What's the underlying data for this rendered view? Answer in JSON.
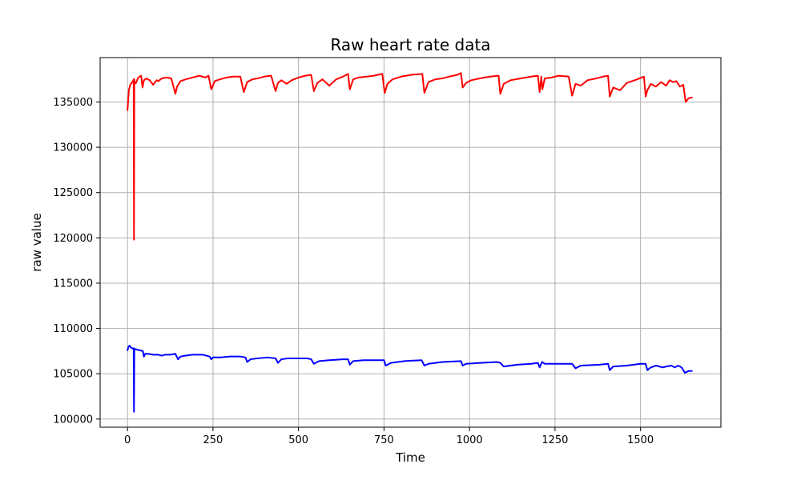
{
  "chart_data": {
    "type": "line",
    "title": "Raw heart rate data",
    "xlabel": "Time",
    "ylabel": "raw value",
    "xlim": [
      -80,
      1735
    ],
    "ylim": [
      99100,
      139900
    ],
    "xticks": [
      0,
      250,
      500,
      750,
      1000,
      1250,
      1500
    ],
    "yticks": [
      100000,
      105000,
      110000,
      115000,
      120000,
      125000,
      130000,
      135000
    ],
    "grid": true,
    "legend": "none",
    "series": [
      {
        "color": "#ff0000",
        "x": [
          0,
          4,
          8,
          12,
          16,
          18,
          19,
          20,
          21,
          25,
          30,
          35,
          40,
          44,
          48,
          55,
          65,
          75,
          85,
          90,
          100,
          115,
          128,
          140,
          145,
          155,
          170,
          190,
          210,
          228,
          237,
          245,
          255,
          270,
          290,
          310,
          330,
          340,
          350,
          365,
          380,
          400,
          420,
          433,
          440,
          450,
          465,
          480,
          500,
          520,
          537,
          545,
          555,
          570,
          590,
          610,
          630,
          645,
          650,
          660,
          675,
          700,
          720,
          745,
          752,
          760,
          775,
          800,
          830,
          862,
          868,
          880,
          900,
          920,
          940,
          965,
          975,
          980,
          990,
          1005,
          1030,
          1060,
          1085,
          1090,
          1100,
          1120,
          1150,
          1180,
          1200,
          1205,
          1210,
          1213,
          1220,
          1240,
          1260,
          1290,
          1300,
          1310,
          1325,
          1345,
          1370,
          1390,
          1405,
          1410,
          1420,
          1440,
          1460,
          1490,
          1510,
          1515,
          1520,
          1530,
          1545,
          1560,
          1575,
          1585,
          1595,
          1605,
          1615,
          1625,
          1632,
          1640,
          1650
        ],
        "y": [
          134100,
          136300,
          136900,
          137100,
          137300,
          137500,
          119800,
          137500,
          137000,
          137100,
          137600,
          137800,
          137900,
          136600,
          137400,
          137600,
          137400,
          136900,
          137400,
          137300,
          137600,
          137700,
          137600,
          135900,
          136700,
          137300,
          137500,
          137700,
          137900,
          137700,
          137900,
          136400,
          137300,
          137500,
          137700,
          137800,
          137800,
          136100,
          137200,
          137500,
          137600,
          137800,
          137900,
          136200,
          137100,
          137400,
          137000,
          137400,
          137700,
          137900,
          138000,
          136200,
          137100,
          137500,
          136800,
          137500,
          137800,
          138100,
          136400,
          137500,
          137700,
          137800,
          137900,
          138100,
          136000,
          137000,
          137500,
          137800,
          138000,
          138100,
          136000,
          137200,
          137500,
          137600,
          137800,
          138000,
          138200,
          136600,
          137100,
          137400,
          137600,
          137800,
          137900,
          135900,
          137000,
          137400,
          137600,
          137800,
          137900,
          136100,
          137800,
          136400,
          137600,
          137700,
          137900,
          137800,
          135700,
          137000,
          136800,
          137400,
          137600,
          137800,
          137900,
          135600,
          136600,
          136300,
          137100,
          137500,
          137800,
          135600,
          136300,
          137000,
          136700,
          137200,
          136800,
          137400,
          137200,
          137300,
          136700,
          136900,
          135000,
          135400,
          135500
        ]
      },
      {
        "color": "#0000ff",
        "x": [
          0,
          3,
          6,
          10,
          14,
          18,
          19,
          20,
          21,
          25,
          35,
          45,
          48,
          52,
          60,
          75,
          90,
          100,
          110,
          125,
          140,
          148,
          155,
          170,
          190,
          220,
          240,
          245,
          250,
          270,
          300,
          330,
          345,
          350,
          360,
          380,
          410,
          433,
          440,
          450,
          470,
          500,
          525,
          537,
          545,
          560,
          590,
          630,
          645,
          650,
          660,
          690,
          730,
          750,
          755,
          770,
          810,
          860,
          868,
          880,
          920,
          975,
          980,
          990,
          1030,
          1080,
          1090,
          1100,
          1140,
          1180,
          1200,
          1205,
          1212,
          1220,
          1260,
          1300,
          1310,
          1325,
          1380,
          1405,
          1410,
          1420,
          1460,
          1500,
          1515,
          1520,
          1530,
          1545,
          1565,
          1575,
          1590,
          1600,
          1610,
          1620,
          1630,
          1640,
          1650
        ],
        "y": [
          107600,
          108000,
          108100,
          107900,
          107800,
          107800,
          100800,
          107800,
          107700,
          107700,
          107600,
          107500,
          106900,
          107200,
          107200,
          107100,
          107100,
          107000,
          107100,
          107100,
          107200,
          106600,
          106900,
          107000,
          107100,
          107100,
          106900,
          106600,
          106800,
          106800,
          106900,
          106900,
          106800,
          106300,
          106600,
          106700,
          106800,
          106700,
          106200,
          106600,
          106700,
          106700,
          106700,
          106600,
          106100,
          106400,
          106500,
          106600,
          106600,
          106000,
          106400,
          106500,
          106500,
          106500,
          105900,
          106200,
          106400,
          106500,
          105900,
          106100,
          106300,
          106400,
          105900,
          106100,
          106200,
          106300,
          106200,
          105800,
          106000,
          106100,
          106200,
          105700,
          106300,
          106100,
          106100,
          106100,
          105600,
          105900,
          106000,
          106100,
          105400,
          105800,
          105900,
          106100,
          106100,
          105400,
          105700,
          105900,
          105700,
          105800,
          105900,
          105700,
          105900,
          105700,
          105100,
          105300,
          105300
        ]
      }
    ]
  }
}
